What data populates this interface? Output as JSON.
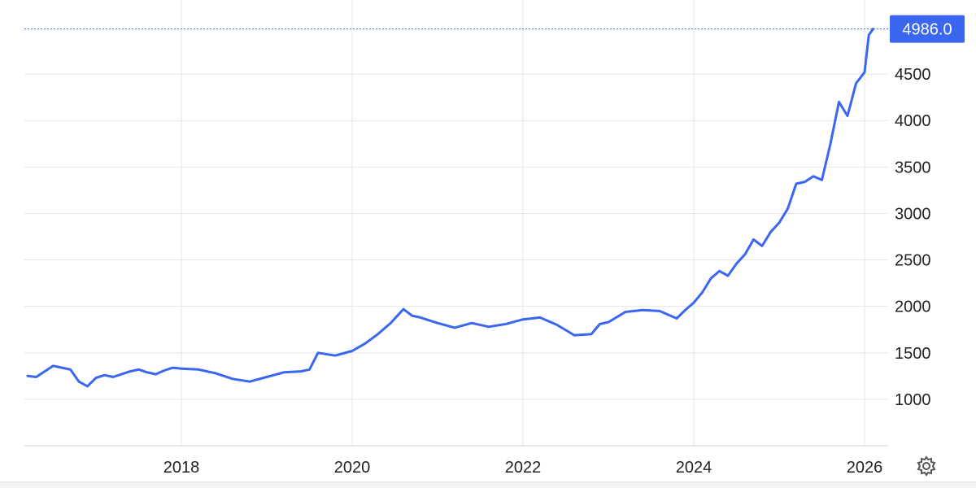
{
  "chart_data": {
    "type": "line",
    "title": "",
    "xlabel": "",
    "ylabel": "",
    "x_ticks": [
      "2018",
      "2020",
      "2022",
      "2024",
      "2026"
    ],
    "y_ticks": [
      "1000",
      "1500",
      "2000",
      "2500",
      "3000",
      "3500",
      "4000",
      "4500"
    ],
    "ylim": [
      500,
      5000
    ],
    "xlim": [
      2016.2,
      2026.3
    ],
    "grid": true,
    "last_value_label": "4986.0",
    "line_color": "#3a66f0",
    "series": [
      {
        "x": [
          2016.2,
          2016.3,
          2016.4,
          2016.5,
          2016.6,
          2016.7,
          2016.8,
          2016.9,
          2017.0,
          2017.1,
          2017.2,
          2017.3,
          2017.4,
          2017.5,
          2017.6,
          2017.7,
          2017.8,
          2017.9,
          2018.0,
          2018.2,
          2018.4,
          2018.6,
          2018.8,
          2019.0,
          2019.2,
          2019.4,
          2019.5,
          2019.6,
          2019.8,
          2020.0,
          2020.15,
          2020.3,
          2020.45,
          2020.6,
          2020.7,
          2020.8,
          2021.0,
          2021.2,
          2021.4,
          2021.6,
          2021.8,
          2022.0,
          2022.2,
          2022.4,
          2022.6,
          2022.8,
          2022.9,
          2023.0,
          2023.2,
          2023.4,
          2023.6,
          2023.8,
          2023.9,
          2024.0,
          2024.1,
          2024.2,
          2024.3,
          2024.4,
          2024.5,
          2024.6,
          2024.7,
          2024.8,
          2024.9,
          2025.0,
          2025.1,
          2025.2,
          2025.3,
          2025.4,
          2025.5,
          2025.6,
          2025.7,
          2025.8,
          2025.9,
          2026.0,
          2026.05,
          2026.1
        ],
        "values": [
          1250,
          1240,
          1300,
          1360,
          1340,
          1320,
          1190,
          1140,
          1230,
          1260,
          1240,
          1270,
          1300,
          1320,
          1290,
          1270,
          1310,
          1340,
          1330,
          1320,
          1280,
          1220,
          1190,
          1240,
          1290,
          1300,
          1320,
          1500,
          1470,
          1520,
          1600,
          1700,
          1820,
          1970,
          1900,
          1880,
          1820,
          1770,
          1820,
          1780,
          1810,
          1860,
          1880,
          1800,
          1690,
          1700,
          1810,
          1830,
          1940,
          1960,
          1950,
          1870,
          1960,
          2040,
          2150,
          2300,
          2380,
          2330,
          2460,
          2560,
          2720,
          2650,
          2800,
          2900,
          3050,
          3320,
          3340,
          3400,
          3360,
          3750,
          4200,
          4050,
          4400,
          4520,
          4920,
          4986
        ]
      }
    ]
  }
}
